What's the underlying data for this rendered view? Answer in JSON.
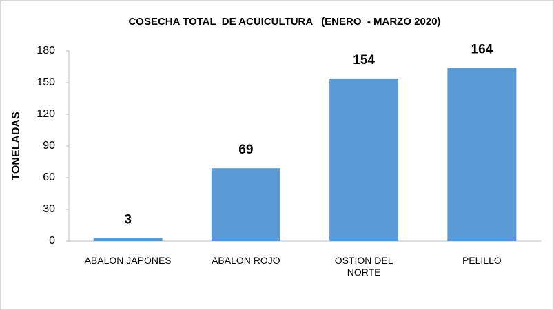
{
  "chart_data": {
    "type": "bar",
    "title": "COSECHA TOTAL  DE ACUICULTURA   (ENERO  - MARZO 2020)",
    "ylabel": "TONELADAS",
    "categories": [
      "ABALON JAPONES",
      "ABALON ROJO",
      "OSTION DEL\nNORTE",
      "PELILLO"
    ],
    "values": [
      3,
      69,
      154,
      164
    ],
    "color": "#5b9bd5",
    "ylim": [
      0,
      180
    ],
    "yticks": [
      0,
      30,
      60,
      90,
      120,
      150,
      180
    ],
    "grid": false
  }
}
